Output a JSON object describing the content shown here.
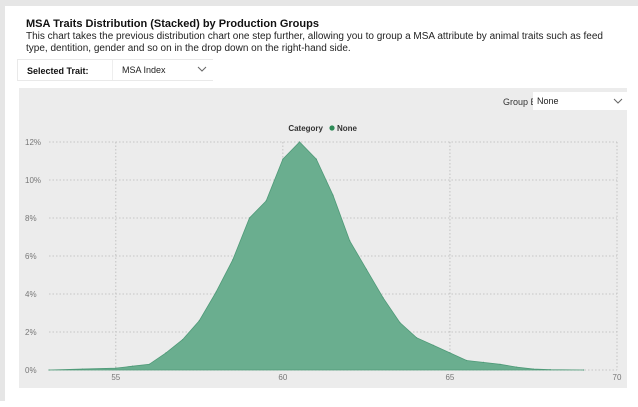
{
  "header": {
    "title": "MSA Traits Distribution (Stacked) by Production Groups",
    "description": "This chart takes the previous distribution chart one step further, allowing you to group a MSA attribute by animal traits such as feed type, dentition, gender and so on in the drop down on the right-hand side."
  },
  "controls": {
    "trait_label": "Selected Trait:",
    "trait_value": "MSA Index",
    "groupby_label": "Group By:",
    "groupby_value": "None"
  },
  "colors": {
    "area_fill": "#6aae8f",
    "area_stroke": "#4f9a78",
    "legend_dot": "#2e8b57",
    "panel_bg": "#ececec"
  },
  "chart_data": {
    "type": "area",
    "legend_title": "Category",
    "series": [
      {
        "name": "None",
        "x": [
          53,
          54,
          55,
          55.5,
          56,
          56.5,
          57,
          57.5,
          58,
          58.5,
          59,
          59.5,
          60,
          60.5,
          61,
          61.5,
          62,
          62.5,
          63,
          63.5,
          64,
          64.5,
          65,
          65.5,
          66,
          66.5,
          67,
          67.5,
          68,
          69
        ],
        "values": [
          0,
          0.05,
          0.1,
          0.2,
          0.3,
          0.9,
          1.6,
          2.6,
          4.1,
          5.8,
          8.0,
          8.9,
          11.1,
          12.0,
          11.1,
          9.2,
          6.8,
          5.3,
          3.8,
          2.5,
          1.7,
          1.3,
          0.9,
          0.5,
          0.4,
          0.3,
          0.15,
          0.05,
          0.02,
          0
        ]
      }
    ],
    "xlim": [
      53,
      70
    ],
    "ylim": [
      0,
      12
    ],
    "x_ticks": [
      55,
      60,
      65,
      70
    ],
    "y_ticks": [
      0,
      2,
      4,
      6,
      8,
      10,
      12
    ],
    "y_tick_labels": [
      "0%",
      "2%",
      "4%",
      "6%",
      "8%",
      "10%",
      "12%"
    ],
    "grid": true,
    "legend_position": "top-center"
  }
}
